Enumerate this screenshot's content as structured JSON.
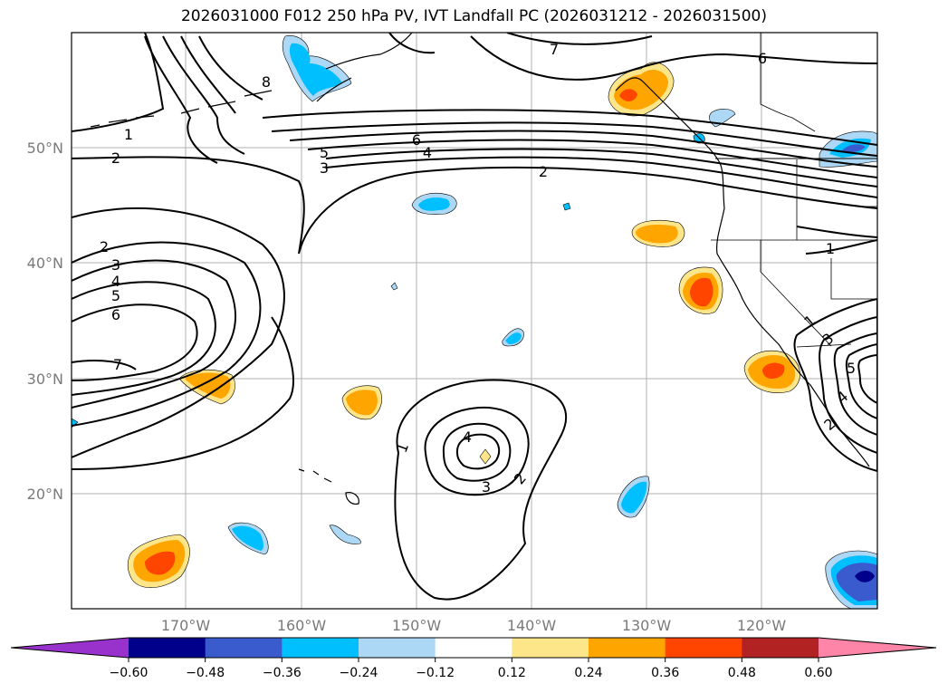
{
  "title": "2026031000 F012 250 hPa PV, IVT Landfall PC (2026031212 - 2026031500)",
  "lat_labels": [
    "50°N",
    "40°N",
    "30°N",
    "20°N"
  ],
  "lon_labels": [
    "170°W",
    "160°W",
    "150°W",
    "140°W",
    "130°W",
    "120°W"
  ],
  "contour_labels": [
    {
      "text": "1",
      "name": "pv-1-nw"
    },
    {
      "text": "2",
      "name": "pv-2-nw"
    },
    {
      "text": "8",
      "name": "pv-8-north"
    },
    {
      "text": "5",
      "name": "pv-5-jet"
    },
    {
      "text": "3",
      "name": "pv-3-jet"
    },
    {
      "text": "6",
      "name": "pv-6-jet"
    },
    {
      "text": "4",
      "name": "pv-4-jet"
    },
    {
      "text": "2",
      "name": "pv-2-jet"
    },
    {
      "text": "7",
      "name": "pv-7-north"
    },
    {
      "text": "6",
      "name": "pv-6-ne"
    },
    {
      "text": "2",
      "name": "pv-2-west"
    },
    {
      "text": "3",
      "name": "pv-3-west"
    },
    {
      "text": "4",
      "name": "pv-4-west"
    },
    {
      "text": "5",
      "name": "pv-5-west"
    },
    {
      "text": "6",
      "name": "pv-6-west"
    },
    {
      "text": "7",
      "name": "pv-7-west"
    },
    {
      "text": "1",
      "name": "pv-1-low"
    },
    {
      "text": "4",
      "name": "pv-4-low"
    },
    {
      "text": "3",
      "name": "pv-3-low"
    },
    {
      "text": "2",
      "name": "pv-2-low"
    },
    {
      "text": "1",
      "name": "pv-1-east"
    },
    {
      "text": "1",
      "name": "pv-1-se"
    },
    {
      "text": "3",
      "name": "pv-3-se"
    },
    {
      "text": "5",
      "name": "pv-5-se"
    },
    {
      "text": "4",
      "name": "pv-4-se"
    },
    {
      "text": "2",
      "name": "pv-2-se"
    }
  ],
  "colorbar": {
    "colors": [
      "#9932cc",
      "#00008b",
      "#3a5bcd",
      "#00bfff",
      "#add8f5",
      "#ffffff",
      "#fde68a",
      "#ffa500",
      "#ff4500",
      "#b22222",
      "#ff85a8"
    ],
    "ticks": [
      "−0.60",
      "−0.48",
      "−0.36",
      "−0.24",
      "−0.12",
      "0.12",
      "0.24",
      "0.36",
      "0.48",
      "0.60"
    ]
  }
}
